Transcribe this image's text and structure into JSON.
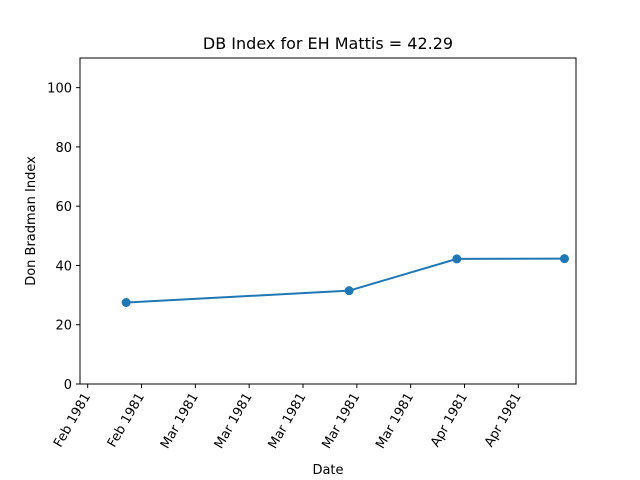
{
  "chart_data": {
    "type": "line",
    "title": "DB Index for EH Mattis = 42.29",
    "xlabel": "Date",
    "ylabel": "Don Bradman Index",
    "x_tick_labels": [
      "Feb 1981",
      "Feb 1981",
      "Mar 1981",
      "Mar 1981",
      "Mar 1981",
      "Mar 1981",
      "Mar 1981",
      "Apr 1981",
      "Apr 1981"
    ],
    "y_ticks": [
      0,
      20,
      40,
      60,
      80,
      100
    ],
    "ylim": [
      0,
      110
    ],
    "grid": false,
    "series": [
      {
        "color": "#1f77b4",
        "marker": "circle",
        "points": [
          {
            "x": "1981-02-13",
            "y": 27.5
          },
          {
            "x": "1981-03-14",
            "y": 31.5
          },
          {
            "x": "1981-03-28",
            "y": 42.2
          },
          {
            "x": "1981-04-11",
            "y": 42.29
          }
        ]
      }
    ]
  }
}
